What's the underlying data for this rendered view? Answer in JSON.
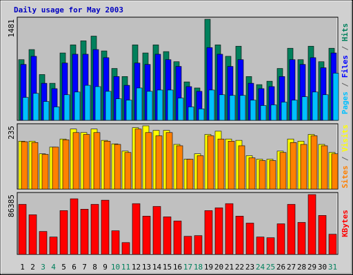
{
  "chart_data": [
    {
      "type": "bar",
      "title": "Daily usage for May 2003",
      "ylim": [
        0,
        1481
      ],
      "yticks": [
        1481
      ],
      "legend_separator": " / ",
      "series": [
        {
          "name": "Hits",
          "color": "#00805c",
          "values": [
            889,
            1037,
            671,
            543,
            987,
            1106,
            1165,
            1234,
            1017,
            760,
            642,
            1106,
            987,
            1106,
            1007,
            859,
            563,
            474,
            1481,
            1106,
            938,
            1086,
            642,
            523,
            573,
            760,
            1056,
            889,
            1086,
            859,
            1056
          ]
        },
        {
          "name": "Files",
          "color": "#0000ff",
          "values": [
            819,
            938,
            543,
            464,
            839,
            968,
            968,
            1037,
            918,
            642,
            513,
            839,
            819,
            968,
            889,
            790,
            494,
            425,
            1066,
            968,
            790,
            889,
            543,
            464,
            494,
            642,
            889,
            819,
            918,
            770,
            987
          ]
        },
        {
          "name": "Pages",
          "color": "#00c0ff",
          "values": [
            336,
            395,
            276,
            197,
            375,
            415,
            513,
            494,
            425,
            316,
            296,
            474,
            425,
            444,
            444,
            326,
            197,
            168,
            444,
            375,
            365,
            365,
            296,
            217,
            227,
            267,
            296,
            346,
            415,
            375,
            691
          ]
        }
      ]
    },
    {
      "type": "bar",
      "ylim": [
        0,
        235
      ],
      "yticks": [
        235
      ],
      "legend_separator": " / ",
      "series": [
        {
          "name": "Visits",
          "color": "#ffff00",
          "values": [
            178,
            178,
            131,
            156,
            186,
            223,
            210,
            223,
            181,
            168,
            141,
            228,
            235,
            218,
            218,
            166,
            111,
            131,
            203,
            215,
            186,
            181,
            124,
            111,
            111,
            141,
            186,
            178,
            203,
            166,
            136
          ]
        },
        {
          "name": "Sites",
          "color": "#ff8000",
          "values": [
            176,
            173,
            129,
            156,
            183,
            210,
            203,
            210,
            178,
            166,
            136,
            223,
            210,
            198,
            210,
            161,
            111,
            124,
            198,
            186,
            178,
            161,
            116,
            106,
            106,
            136,
            173,
            166,
            198,
            161,
            131
          ]
        }
      ]
    },
    {
      "type": "bar",
      "ylim": [
        0,
        86385
      ],
      "yticks": [
        86385
      ],
      "categories": [
        "1",
        "2",
        "3",
        "4",
        "5",
        "6",
        "7",
        "8",
        "9",
        "10",
        "11",
        "12",
        "13",
        "14",
        "15",
        "16",
        "17",
        "18",
        "19",
        "20",
        "21",
        "22",
        "23",
        "24",
        "25",
        "26",
        "27",
        "28",
        "29",
        "30",
        "31"
      ],
      "category_colors": [
        "#000000",
        "#000000",
        "#00805c",
        "#00805c",
        "#000000",
        "#000000",
        "#000000",
        "#000000",
        "#000000",
        "#00805c",
        "#00805c",
        "#000000",
        "#000000",
        "#000000",
        "#000000",
        "#000000",
        "#00805c",
        "#00805c",
        "#000000",
        "#000000",
        "#000000",
        "#000000",
        "#000000",
        "#00805c",
        "#00805c",
        "#000000",
        "#000000",
        "#000000",
        "#000000",
        "#000000",
        "#00805c"
      ],
      "series": [
        {
          "name": "KBytes",
          "color": "#ff0000",
          "values": [
            72288,
            57228,
            33132,
            25100,
            63252,
            80320,
            65260,
            72288,
            78312,
            34136,
            17068,
            73292,
            55220,
            69276,
            54216,
            48192,
            26104,
            27108,
            63252,
            67268,
            73292,
            55220,
            45180,
            25100,
            24096,
            44176,
            72288,
            46184,
            86385,
            56224,
            29116
          ]
        }
      ]
    }
  ]
}
